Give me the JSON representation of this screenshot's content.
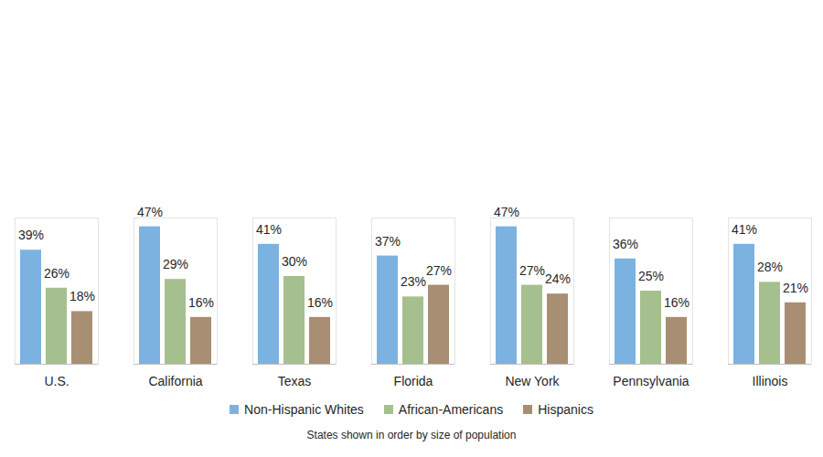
{
  "chart_data": {
    "type": "bar",
    "categories": [
      "U.S.",
      "California",
      "Texas",
      "Florida",
      "New York",
      "Pennsylvania",
      "Illinois"
    ],
    "series": [
      {
        "name": "Non-Hispanic Whites",
        "color": "#7cb2e0",
        "values": [
          39,
          47,
          41,
          37,
          47,
          36,
          41
        ],
        "value_labels": [
          "39%",
          "47%",
          "41%",
          "37%",
          "47%",
          "36%",
          "41%"
        ]
      },
      {
        "name": "African-Americans",
        "color": "#a5bf8e",
        "values": [
          26,
          29,
          30,
          23,
          27,
          25,
          28
        ],
        "value_labels": [
          "26%",
          "29%",
          "30%",
          "23%",
          "27%",
          "25%",
          "28%"
        ]
      },
      {
        "name": "Hispanics",
        "color": "#a88e72",
        "values": [
          18,
          16,
          16,
          27,
          24,
          16,
          21
        ],
        "value_labels": [
          "18%",
          "16%",
          "16%",
          "27%",
          "24%",
          "16%",
          "21%"
        ]
      }
    ],
    "ylim": [
      0,
      50
    ],
    "data_labels": true,
    "tick_labels": "x",
    "legend": "bottom",
    "caption": "States shown in order by size of population"
  }
}
